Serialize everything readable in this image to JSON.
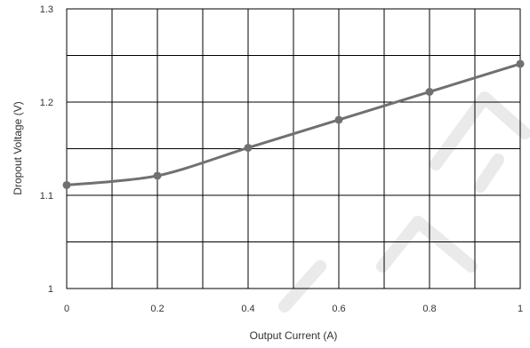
{
  "chart_data": {
    "type": "line",
    "xlabel": "Output Current (A)",
    "ylabel": "Dropout Voltage (V)",
    "xlim": [
      0,
      1
    ],
    "ylim": [
      1,
      1.3
    ],
    "x_ticks": [
      "0",
      "0.2",
      "0.4",
      "0.6",
      "0.8",
      "1"
    ],
    "y_ticks": [
      "1",
      "1.1",
      "1.2",
      "1.3"
    ],
    "x_grid_step": 0.1,
    "y_grid_step": 0.05,
    "grid": true,
    "series": [
      {
        "x": [
          0,
          0.2,
          0.4,
          0.6,
          0.8,
          1.0
        ],
        "y": [
          1.111,
          1.121,
          1.151,
          1.181,
          1.211,
          1.241
        ],
        "color": "#707070",
        "marker": "circle"
      }
    ]
  }
}
